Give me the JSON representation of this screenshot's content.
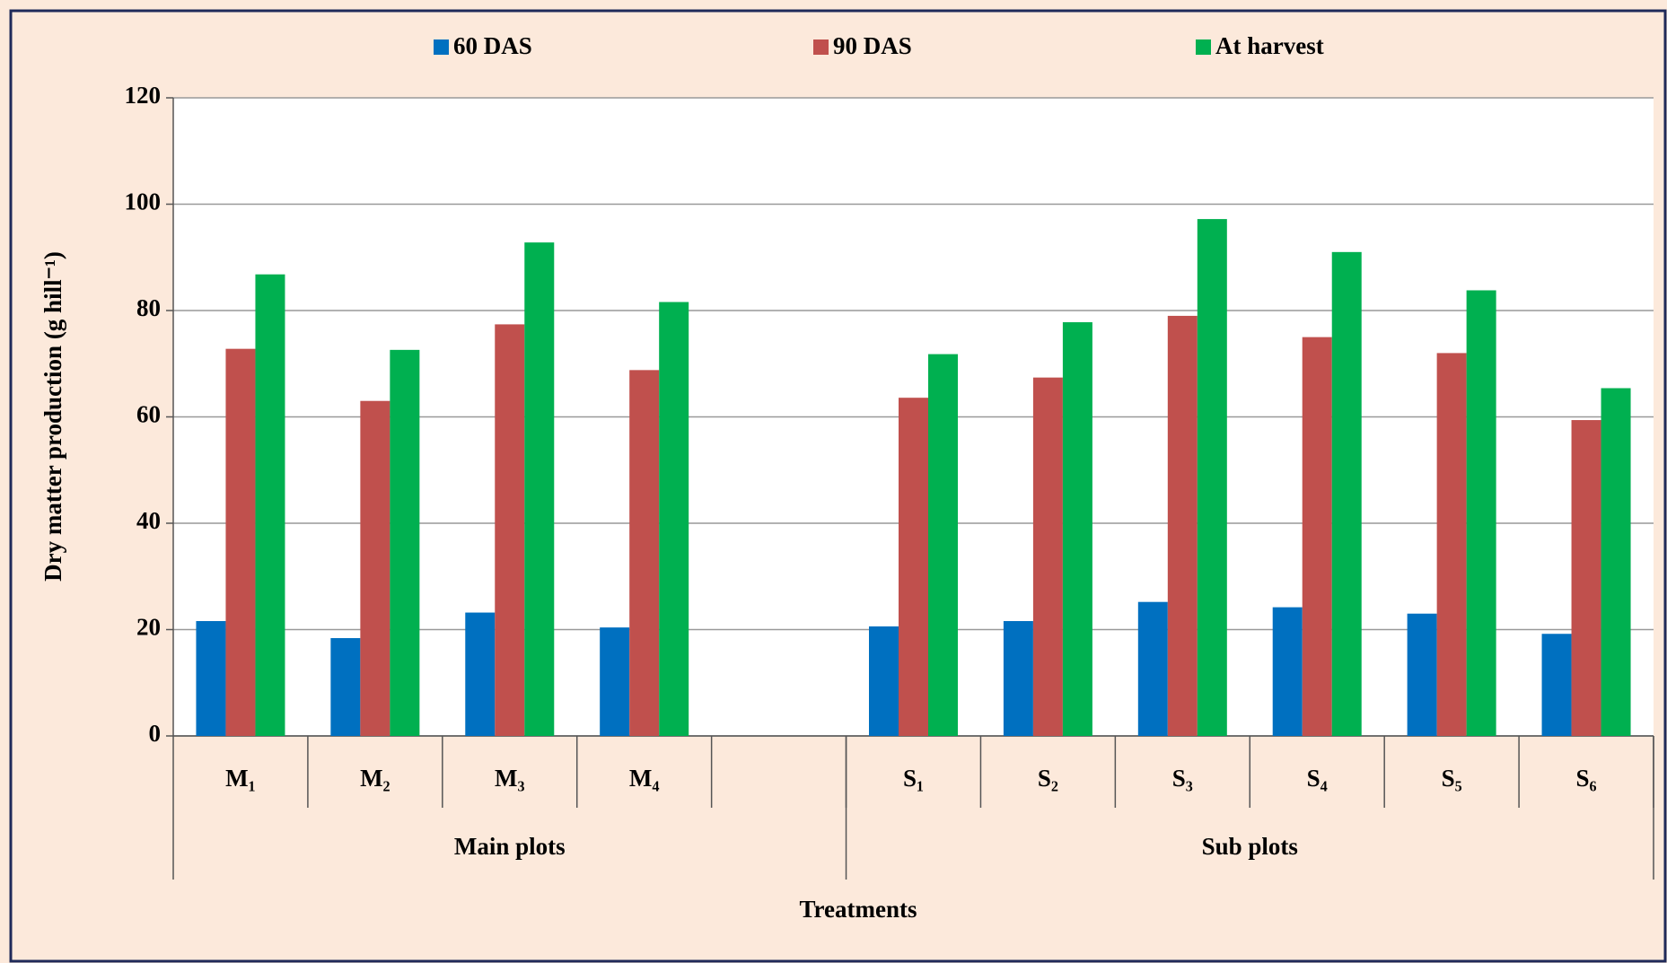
{
  "chart_data": {
    "type": "bar",
    "y_label": "Dry matter production (g hill⁻¹)",
    "x_label": "Treatments",
    "groups": [
      {
        "name": "Main plots",
        "categories": [
          "M₁",
          "M₂",
          "M₃",
          "M₄",
          null
        ]
      },
      {
        "name": "Sub plots",
        "categories": [
          "S₁",
          "S₂",
          "S₃",
          "S₄",
          "S₅",
          "S₆"
        ]
      }
    ],
    "series": [
      {
        "name": "60 DAS",
        "color": "#0070c0",
        "values": [
          21.6,
          18.4,
          23.2,
          20.4,
          null,
          20.6,
          21.6,
          25.2,
          24.2,
          23,
          19.2
        ]
      },
      {
        "name": "90 DAS",
        "color": "#c0504d",
        "values": [
          72.8,
          63,
          77.4,
          68.8,
          null,
          63.6,
          67.4,
          79,
          75,
          72,
          59.4
        ]
      },
      {
        "name": "At harvest",
        "color": "#00b050",
        "values": [
          86.8,
          72.6,
          92.8,
          81.6,
          null,
          71.8,
          77.8,
          97.2,
          91,
          83.8,
          65.4
        ]
      }
    ],
    "ylim": [
      0,
      120
    ],
    "yticks": [
      0,
      20,
      40,
      60,
      80,
      100,
      120
    ],
    "grid": true,
    "legend": "top"
  }
}
